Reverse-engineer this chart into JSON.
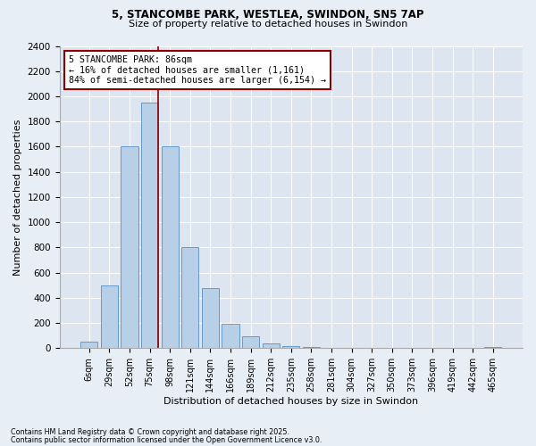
{
  "title1": "5, STANCOMBE PARK, WESTLEA, SWINDON, SN5 7AP",
  "title2": "Size of property relative to detached houses in Swindon",
  "xlabel": "Distribution of detached houses by size in Swindon",
  "ylabel": "Number of detached properties",
  "bar_labels": [
    "6sqm",
    "29sqm",
    "52sqm",
    "75sqm",
    "98sqm",
    "121sqm",
    "144sqm",
    "166sqm",
    "189sqm",
    "212sqm",
    "235sqm",
    "258sqm",
    "281sqm",
    "304sqm",
    "327sqm",
    "350sqm",
    "373sqm",
    "396sqm",
    "419sqm",
    "442sqm",
    "465sqm"
  ],
  "bar_values": [
    50,
    500,
    1600,
    1950,
    1600,
    800,
    475,
    195,
    95,
    35,
    18,
    10,
    0,
    0,
    0,
    0,
    0,
    0,
    0,
    0,
    10
  ],
  "bar_color": "#b8cfe8",
  "bar_edgecolor": "#6699cc",
  "vline_color": "#8b0000",
  "annotation_text": "5 STANCOMBE PARK: 86sqm\n← 16% of detached houses are smaller (1,161)\n84% of semi-detached houses are larger (6,154) →",
  "annotation_box_edgecolor": "#8b0000",
  "ylim": [
    0,
    2400
  ],
  "yticks": [
    0,
    200,
    400,
    600,
    800,
    1000,
    1200,
    1400,
    1600,
    1800,
    2000,
    2200,
    2400
  ],
  "footnote1": "Contains HM Land Registry data © Crown copyright and database right 2025.",
  "footnote2": "Contains public sector information licensed under the Open Government Licence v3.0.",
  "bg_color": "#e8eef5",
  "plot_bg_color": "#dce5f0"
}
